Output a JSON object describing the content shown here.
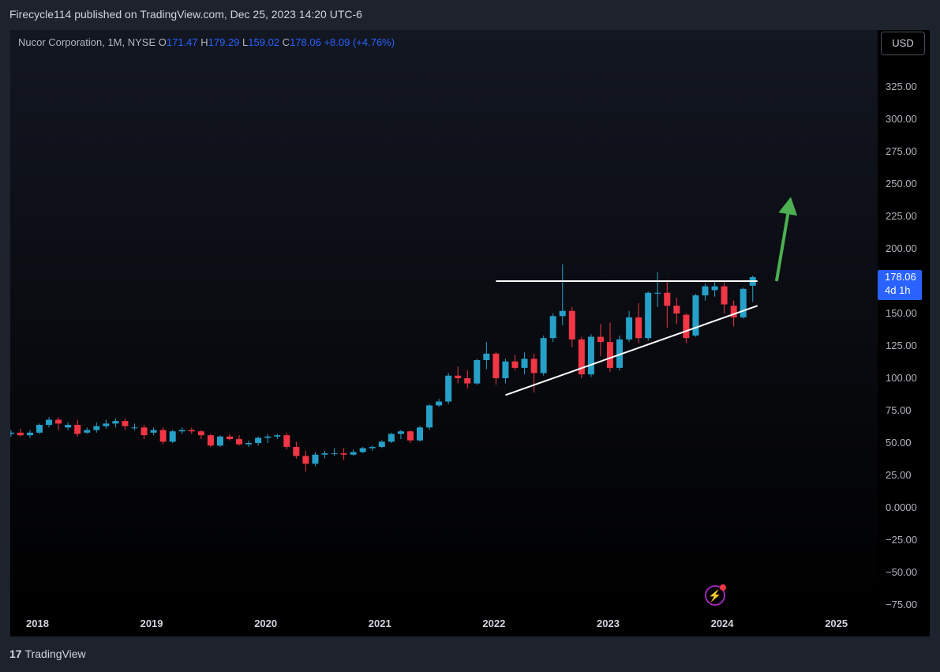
{
  "header": {
    "published": "Firecycle114 published on TradingView.com, Dec 25, 2023 14:20 UTC-6"
  },
  "legend": {
    "symbol": "Nucor Corporation, 1M, NYSE",
    "o_label": "O",
    "o": "171.47",
    "h_label": "H",
    "h": "179.29",
    "l_label": "L",
    "l": "159.02",
    "c_label": "C",
    "c": "178.06",
    "change": "+8.09 (+4.76%)"
  },
  "currency": "USD",
  "last_price": {
    "price": "178.06",
    "countdown": "4d 1h"
  },
  "footer": {
    "logo_mark": "17",
    "brand": "TradingView"
  },
  "colors": {
    "up": "#26a0c9",
    "down": "#f23645",
    "accent": "#2962ff",
    "arrow": "#4caf50"
  },
  "icons": {
    "alert": "lightning-icon"
  },
  "chart_data": {
    "type": "candlestick",
    "interval": "1M",
    "y_ticks": [
      "325.00",
      "300.00",
      "275.00",
      "250.00",
      "225.00",
      "200.00",
      "175.00",
      "150.00",
      "125.00",
      "100.00",
      "75.00",
      "50.00",
      "25.00",
      "0.0000",
      "−25.00",
      "−50.00",
      "−75.00"
    ],
    "y_tick_values": [
      325,
      300,
      275,
      250,
      225,
      200,
      175,
      150,
      125,
      100,
      75,
      50,
      25,
      0,
      -25,
      -50,
      -75
    ],
    "x_ticks": [
      "2018",
      "2019",
      "2020",
      "2021",
      "2022",
      "2023",
      "2024",
      "2025"
    ],
    "x_tick_months": [
      0,
      12,
      24,
      36,
      48,
      60,
      72,
      84
    ],
    "candles": [
      {
        "m": -3,
        "o": 57,
        "h": 60,
        "l": 55,
        "c": 58
      },
      {
        "m": -2,
        "o": 58,
        "h": 61,
        "l": 55,
        "c": 56
      },
      {
        "m": -1,
        "o": 56,
        "h": 60,
        "l": 54,
        "c": 58
      },
      {
        "m": 0,
        "o": 58,
        "h": 65,
        "l": 57,
        "c": 64
      },
      {
        "m": 1,
        "o": 64,
        "h": 70,
        "l": 62,
        "c": 68
      },
      {
        "m": 2,
        "o": 68,
        "h": 70,
        "l": 60,
        "c": 65
      },
      {
        "m": 3,
        "o": 62,
        "h": 66,
        "l": 60,
        "c": 64
      },
      {
        "m": 4,
        "o": 64,
        "h": 68,
        "l": 55,
        "c": 57
      },
      {
        "m": 5,
        "o": 58,
        "h": 62,
        "l": 57,
        "c": 60
      },
      {
        "m": 6,
        "o": 60,
        "h": 66,
        "l": 58,
        "c": 63
      },
      {
        "m": 7,
        "o": 63,
        "h": 68,
        "l": 61,
        "c": 65
      },
      {
        "m": 8,
        "o": 65,
        "h": 69,
        "l": 62,
        "c": 67
      },
      {
        "m": 9,
        "o": 67,
        "h": 69,
        "l": 60,
        "c": 63
      },
      {
        "m": 10,
        "o": 62,
        "h": 65,
        "l": 60,
        "c": 62
      },
      {
        "m": 11,
        "o": 62,
        "h": 64,
        "l": 53,
        "c": 56
      },
      {
        "m": 12,
        "o": 58,
        "h": 62,
        "l": 56,
        "c": 60
      },
      {
        "m": 13,
        "o": 60,
        "h": 62,
        "l": 49,
        "c": 51
      },
      {
        "m": 14,
        "o": 51,
        "h": 60,
        "l": 50,
        "c": 59
      },
      {
        "m": 15,
        "o": 59,
        "h": 62,
        "l": 57,
        "c": 60
      },
      {
        "m": 16,
        "o": 60,
        "h": 62,
        "l": 57,
        "c": 59
      },
      {
        "m": 17,
        "o": 59,
        "h": 60,
        "l": 53,
        "c": 56
      },
      {
        "m": 18,
        "o": 56,
        "h": 57,
        "l": 47,
        "c": 48
      },
      {
        "m": 19,
        "o": 48,
        "h": 56,
        "l": 47,
        "c": 55
      },
      {
        "m": 20,
        "o": 55,
        "h": 57,
        "l": 52,
        "c": 53
      },
      {
        "m": 21,
        "o": 53,
        "h": 56,
        "l": 48,
        "c": 49
      },
      {
        "m": 22,
        "o": 49,
        "h": 52,
        "l": 47,
        "c": 50
      },
      {
        "m": 23,
        "o": 50,
        "h": 55,
        "l": 48,
        "c": 54
      },
      {
        "m": 24,
        "o": 54,
        "h": 57,
        "l": 50,
        "c": 55
      },
      {
        "m": 25,
        "o": 55,
        "h": 57,
        "l": 53,
        "c": 56
      },
      {
        "m": 26,
        "o": 56,
        "h": 58,
        "l": 45,
        "c": 47
      },
      {
        "m": 27,
        "o": 47,
        "h": 51,
        "l": 38,
        "c": 40
      },
      {
        "m": 28,
        "o": 40,
        "h": 44,
        "l": 28,
        "c": 34
      },
      {
        "m": 29,
        "o": 34,
        "h": 43,
        "l": 32,
        "c": 41
      },
      {
        "m": 30,
        "o": 41,
        "h": 44,
        "l": 38,
        "c": 42
      },
      {
        "m": 31,
        "o": 42,
        "h": 46,
        "l": 40,
        "c": 42
      },
      {
        "m": 32,
        "o": 42,
        "h": 46,
        "l": 37,
        "c": 41
      },
      {
        "m": 33,
        "o": 41,
        "h": 45,
        "l": 40,
        "c": 43
      },
      {
        "m": 34,
        "o": 43,
        "h": 47,
        "l": 42,
        "c": 46
      },
      {
        "m": 35,
        "o": 46,
        "h": 48,
        "l": 44,
        "c": 47
      },
      {
        "m": 36,
        "o": 47,
        "h": 52,
        "l": 46,
        "c": 51
      },
      {
        "m": 37,
        "o": 51,
        "h": 58,
        "l": 50,
        "c": 57
      },
      {
        "m": 38,
        "o": 57,
        "h": 60,
        "l": 53,
        "c": 59
      },
      {
        "m": 39,
        "o": 59,
        "h": 60,
        "l": 50,
        "c": 52
      },
      {
        "m": 40,
        "o": 52,
        "h": 63,
        "l": 51,
        "c": 62
      },
      {
        "m": 41,
        "o": 62,
        "h": 80,
        "l": 60,
        "c": 79
      },
      {
        "m": 42,
        "o": 79,
        "h": 84,
        "l": 78,
        "c": 82
      },
      {
        "m": 43,
        "o": 82,
        "h": 104,
        "l": 80,
        "c": 102
      },
      {
        "m": 44,
        "o": 102,
        "h": 109,
        "l": 96,
        "c": 100
      },
      {
        "m": 45,
        "o": 100,
        "h": 106,
        "l": 92,
        "c": 96
      },
      {
        "m": 46,
        "o": 96,
        "h": 115,
        "l": 95,
        "c": 114
      },
      {
        "m": 47,
        "o": 114,
        "h": 128,
        "l": 107,
        "c": 119
      },
      {
        "m": 48,
        "o": 119,
        "h": 120,
        "l": 95,
        "c": 100
      },
      {
        "m": 49,
        "o": 100,
        "h": 115,
        "l": 96,
        "c": 113
      },
      {
        "m": 50,
        "o": 113,
        "h": 118,
        "l": 106,
        "c": 108
      },
      {
        "m": 51,
        "o": 108,
        "h": 120,
        "l": 103,
        "c": 115
      },
      {
        "m": 52,
        "o": 115,
        "h": 119,
        "l": 89,
        "c": 104
      },
      {
        "m": 53,
        "o": 104,
        "h": 133,
        "l": 102,
        "c": 131
      },
      {
        "m": 54,
        "o": 131,
        "h": 150,
        "l": 128,
        "c": 148
      },
      {
        "m": 55,
        "o": 148,
        "h": 188,
        "l": 141,
        "c": 152
      },
      {
        "m": 56,
        "o": 152,
        "h": 155,
        "l": 124,
        "c": 130
      },
      {
        "m": 57,
        "o": 130,
        "h": 132,
        "l": 100,
        "c": 103
      },
      {
        "m": 58,
        "o": 103,
        "h": 134,
        "l": 101,
        "c": 132
      },
      {
        "m": 59,
        "o": 132,
        "h": 142,
        "l": 117,
        "c": 128
      },
      {
        "m": 60,
        "o": 128,
        "h": 143,
        "l": 105,
        "c": 108
      },
      {
        "m": 61,
        "o": 108,
        "h": 133,
        "l": 106,
        "c": 130
      },
      {
        "m": 62,
        "o": 130,
        "h": 152,
        "l": 128,
        "c": 147
      },
      {
        "m": 63,
        "o": 147,
        "h": 158,
        "l": 127,
        "c": 131
      },
      {
        "m": 64,
        "o": 131,
        "h": 167,
        "l": 129,
        "c": 166
      },
      {
        "m": 65,
        "o": 166,
        "h": 182,
        "l": 155,
        "c": 166
      },
      {
        "m": 66,
        "o": 166,
        "h": 176,
        "l": 139,
        "c": 156
      },
      {
        "m": 67,
        "o": 156,
        "h": 162,
        "l": 142,
        "c": 150
      },
      {
        "m": 68,
        "o": 149,
        "h": 150,
        "l": 127,
        "c": 131
      },
      {
        "m": 69,
        "o": 133,
        "h": 165,
        "l": 132,
        "c": 164
      },
      {
        "m": 70,
        "o": 164,
        "h": 173,
        "l": 160,
        "c": 171
      },
      {
        "m": 71,
        "o": 168,
        "h": 175,
        "l": 163,
        "c": 171
      },
      {
        "m": 72,
        "o": 171,
        "h": 174,
        "l": 150,
        "c": 157
      },
      {
        "m": 73,
        "o": 156,
        "h": 160,
        "l": 140,
        "c": 147
      },
      {
        "m": 74,
        "o": 147,
        "h": 170,
        "l": 146,
        "c": 169
      },
      {
        "m": 75,
        "o": 171.47,
        "h": 179.29,
        "l": 159.02,
        "c": 178.06
      }
    ],
    "drawings": {
      "resistance": {
        "m1": 48,
        "m2": 75.5,
        "v": 175
      },
      "trendline": {
        "m1": 49,
        "v1": 87,
        "m2": 75.5,
        "v2": 156
      },
      "arrow": {
        "m1": 77.5,
        "v1": 175,
        "m2": 79,
        "v2": 240
      }
    }
  }
}
